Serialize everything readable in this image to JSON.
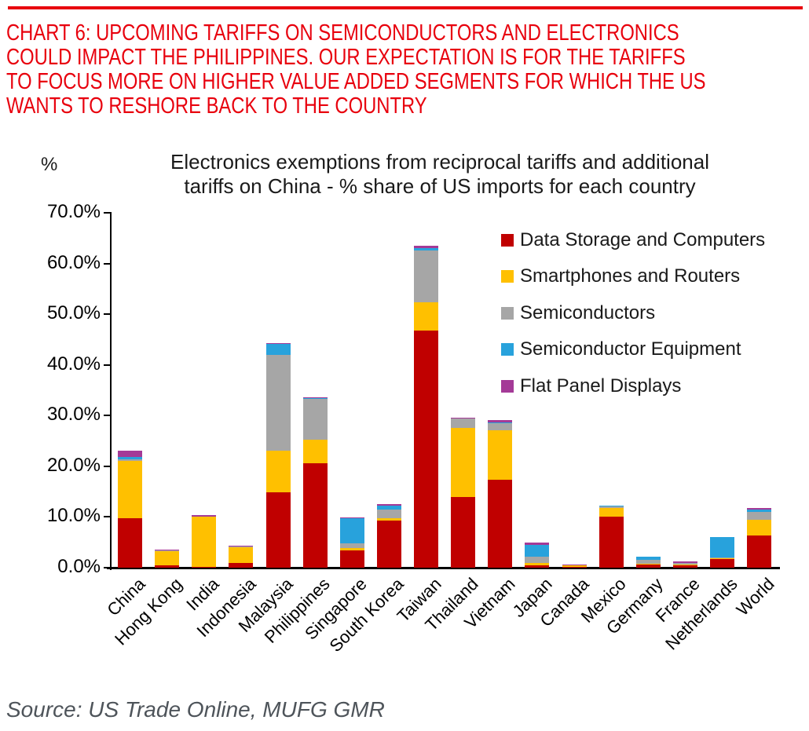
{
  "header": {
    "title": "CHART 6: UPCOMING TARIFFS ON SEMICONDUCTORS AND ELECTRONICS\nCOULD IMPACT THE PHILIPPINES. OUR EXPECTATION IS FOR THE TARIFFS\nTO FOCUS MORE ON HIGHER VALUE ADDED SEGMENTS FOR WHICH THE US\nWANTS TO RESHORE BACK TO THE COUNTRY"
  },
  "chart": {
    "unit_label": "%",
    "title": "Electronics exemptions from reciprocal tariffs and additional\ntariffs on China - % share of US imports for each country"
  },
  "chart_data": {
    "type": "bar",
    "stacked": true,
    "title": "Electronics exemptions from reciprocal tariffs and additional tariffs on China - % share of US imports for each country",
    "ylabel": "%",
    "ylim": [
      0,
      70
    ],
    "ytick_step": 10,
    "ytick_labels": [
      "0.0%",
      "10.0%",
      "20.0%",
      "30.0%",
      "40.0%",
      "50.0%",
      "60.0%",
      "70.0%"
    ],
    "grid": false,
    "legend_position": "top-right",
    "categories": [
      "China",
      "Hong Kong",
      "India",
      "Indonesia",
      "Malaysia",
      "Philippines",
      "Singapore",
      "South Korea",
      "Taiwan",
      "Thailand",
      "Vietnam",
      "Japan",
      "Canada",
      "Mexico",
      "Germany",
      "France",
      "Netherlands",
      "World"
    ],
    "series": [
      {
        "name": "Data Storage and Computers",
        "color": "#C00000",
        "values": [
          9.7,
          0.5,
          0.1,
          1.0,
          14.9,
          20.6,
          3.4,
          9.3,
          46.7,
          14.0,
          17.3,
          0.5,
          0.1,
          10.0,
          0.6,
          0.5,
          1.7,
          6.3
        ]
      },
      {
        "name": "Smartphones and Routers",
        "color": "#FFC000",
        "values": [
          11.3,
          2.7,
          10.0,
          3.1,
          8.1,
          4.7,
          0.4,
          0.4,
          5.7,
          13.5,
          9.8,
          0.4,
          0.3,
          1.7,
          0.2,
          0.1,
          0.2,
          3.2
        ]
      },
      {
        "name": "Semiconductors",
        "color": "#A6A6A6",
        "values": [
          0.3,
          0.2,
          0.0,
          0.1,
          19.0,
          8.0,
          1.0,
          1.8,
          10.1,
          1.9,
          1.4,
          1.2,
          0.1,
          0.4,
          0.7,
          0.3,
          0.1,
          1.5
        ]
      },
      {
        "name": "Semiconductor Equipment",
        "color": "#28A2DC",
        "values": [
          0.5,
          0.0,
          0.0,
          0.0,
          2.1,
          0.15,
          4.9,
          0.8,
          0.5,
          0.05,
          0.1,
          2.4,
          0.0,
          0.1,
          0.7,
          0.1,
          4.0,
          0.4
        ]
      },
      {
        "name": "Flat Panel Displays",
        "color": "#A43A97",
        "values": [
          1.2,
          0.1,
          0.2,
          0.2,
          0.15,
          0.1,
          0.1,
          0.3,
          0.5,
          0.1,
          0.5,
          0.4,
          0.05,
          0.0,
          0.0,
          0.05,
          0.0,
          0.4
        ]
      }
    ]
  },
  "footer": {
    "source": "Source: US Trade Online, MUFG GMR"
  },
  "colors": {
    "heading_red": "#E8000D",
    "rule_red": "#E8000D",
    "axis_black": "#000000",
    "source_gray": "#4E545A"
  }
}
